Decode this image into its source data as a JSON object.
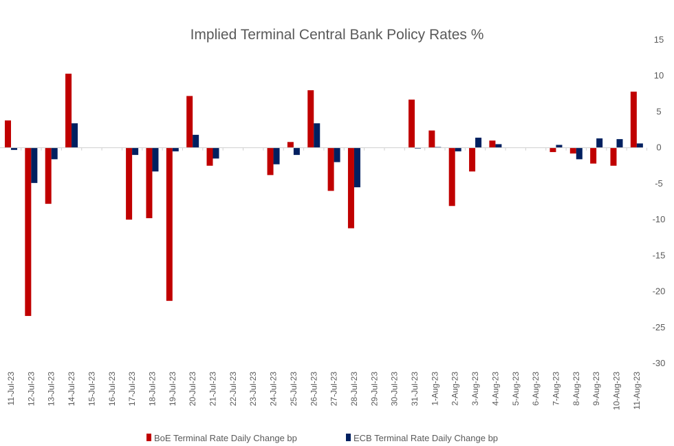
{
  "chart_data": {
    "type": "bar",
    "title": "Implied Terminal Central Bank Policy Rates %",
    "xlabel": "",
    "ylabel": "",
    "ylim": [
      -30,
      15
    ],
    "yticks": [
      15,
      10,
      5,
      0,
      -5,
      -10,
      -15,
      -20,
      -25,
      -30
    ],
    "y_axis_side": "right",
    "legend_position": "bottom",
    "grid": false,
    "categories": [
      "11-Jul-23",
      "12-Jul-23",
      "13-Jul-23",
      "14-Jul-23",
      "15-Jul-23",
      "16-Jul-23",
      "17-Jul-23",
      "18-Jul-23",
      "19-Jul-23",
      "20-Jul-23",
      "21-Jul-23",
      "22-Jul-23",
      "23-Jul-23",
      "24-Jul-23",
      "25-Jul-23",
      "26-Jul-23",
      "27-Jul-23",
      "28-Jul-23",
      "29-Jul-23",
      "30-Jul-23",
      "31-Jul-23",
      "1-Aug-23",
      "2-Aug-23",
      "3-Aug-23",
      "4-Aug-23",
      "5-Aug-23",
      "6-Aug-23",
      "7-Aug-23",
      "8-Aug-23",
      "9-Aug-23",
      "10-Aug-23",
      "11-Aug-23"
    ],
    "series": [
      {
        "name": "BoE Terminal Rate Daily Change bp",
        "color": "#C00000",
        "values": [
          3.8,
          -23.4,
          -7.8,
          10.3,
          0,
          0,
          -10.0,
          -9.8,
          -21.3,
          7.2,
          -2.5,
          0,
          0,
          -3.8,
          0.8,
          8.0,
          -6.0,
          -11.2,
          0,
          0,
          6.7,
          2.4,
          -8.1,
          -3.3,
          1.0,
          0,
          0,
          -0.6,
          -0.8,
          -2.2,
          -2.5,
          7.8
        ]
      },
      {
        "name": "ECB Terminal Rate Daily Change bp",
        "color": "#002060",
        "values": [
          -0.3,
          -4.9,
          -1.6,
          3.4,
          0,
          0,
          -1.0,
          -3.3,
          -0.5,
          1.8,
          -1.5,
          0,
          0,
          -2.3,
          -1.0,
          3.4,
          -2.0,
          -5.5,
          0,
          0,
          -0.1,
          0.1,
          -0.5,
          1.4,
          0.5,
          0,
          0,
          0.4,
          -1.6,
          1.3,
          1.2,
          0.6
        ]
      }
    ]
  }
}
